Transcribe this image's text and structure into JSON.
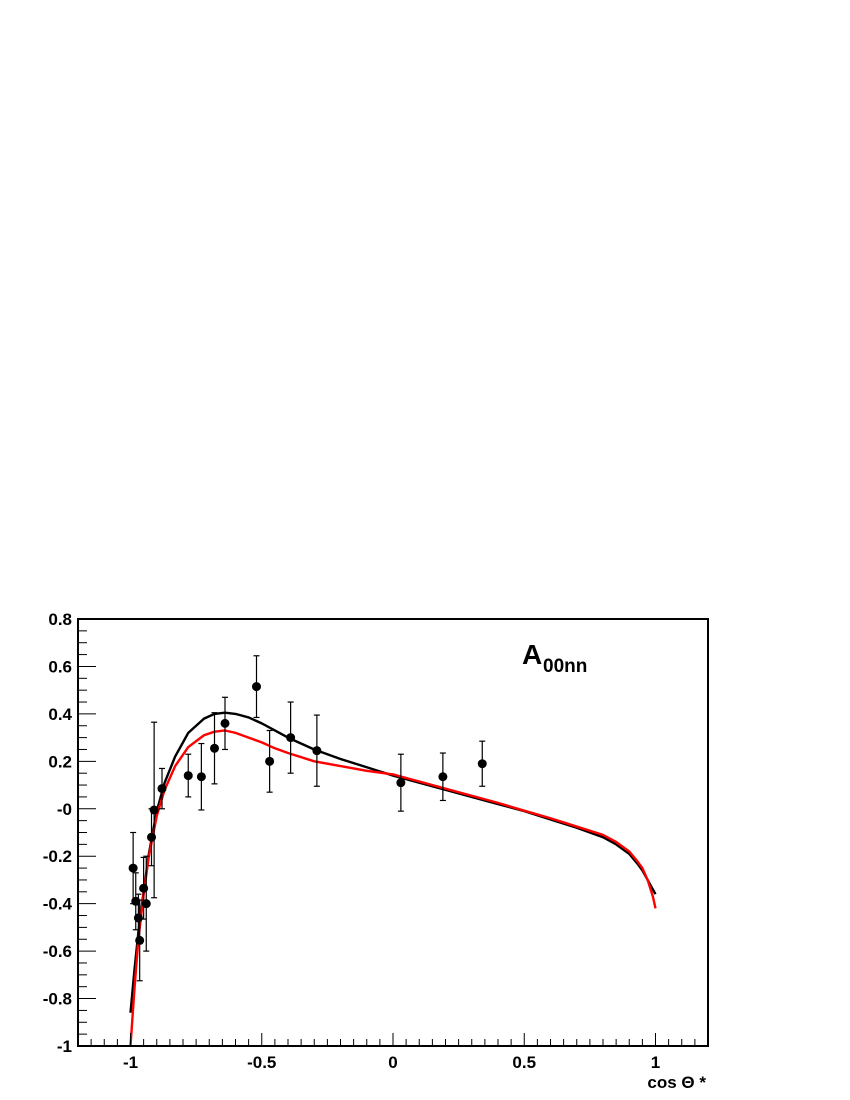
{
  "chart_data": {
    "type": "scatter",
    "title": "",
    "xlabel": "cos Θ *",
    "ylabel": "",
    "xlim": [
      -1.2,
      1.2
    ],
    "ylim": [
      -1,
      0.8
    ],
    "grid": false,
    "annotation": {
      "main": "A",
      "sub": "00nn"
    },
    "x_ticks": [
      -1,
      -0.5,
      0,
      0.5,
      1
    ],
    "x_tick_labels": [
      "-1",
      "-0.5",
      "0",
      "0.5",
      "1"
    ],
    "y_ticks": [
      -1,
      -0.8,
      -0.6,
      -0.4,
      -0.2,
      0,
      0.2,
      0.4,
      0.6,
      0.8
    ],
    "y_tick_labels": [
      "-1",
      "-0.8",
      "-0.6",
      "-0.4",
      "-0.2",
      "-0",
      "0.2",
      "0.4",
      "0.6",
      "0.8"
    ],
    "points": [
      {
        "x": -0.99,
        "y": -0.25,
        "err": 0.15
      },
      {
        "x": -0.98,
        "y": -0.39,
        "err": 0.12
      },
      {
        "x": -0.97,
        "y": -0.46,
        "err": 0.1
      },
      {
        "x": -0.965,
        "y": -0.555,
        "err": 0.17
      },
      {
        "x": -0.95,
        "y": -0.335,
        "err": 0.13
      },
      {
        "x": -0.94,
        "y": -0.4,
        "err": 0.2
      },
      {
        "x": -0.92,
        "y": -0.12,
        "err": 0.12
      },
      {
        "x": -0.91,
        "y": -0.005,
        "err": 0.37
      },
      {
        "x": -0.88,
        "y": 0.085,
        "err": 0.085
      },
      {
        "x": -0.78,
        "y": 0.14,
        "err": 0.09
      },
      {
        "x": -0.73,
        "y": 0.135,
        "err": 0.14
      },
      {
        "x": -0.68,
        "y": 0.255,
        "err": 0.15
      },
      {
        "x": -0.64,
        "y": 0.36,
        "err": 0.11
      },
      {
        "x": -0.52,
        "y": 0.515,
        "err": 0.13
      },
      {
        "x": -0.47,
        "y": 0.2,
        "err": 0.13
      },
      {
        "x": -0.39,
        "y": 0.3,
        "err": 0.15
      },
      {
        "x": -0.29,
        "y": 0.245,
        "err": 0.15
      },
      {
        "x": 0.03,
        "y": 0.11,
        "err": 0.12
      },
      {
        "x": 0.19,
        "y": 0.135,
        "err": 0.1
      },
      {
        "x": 0.34,
        "y": 0.19,
        "err": 0.095
      }
    ],
    "series": [
      {
        "color": "#000000",
        "x": [
          -1.0,
          -0.985,
          -0.97,
          -0.95,
          -0.93,
          -0.9,
          -0.87,
          -0.83,
          -0.78,
          -0.72,
          -0.68,
          -0.64,
          -0.6,
          -0.55,
          -0.5,
          -0.45,
          -0.4,
          -0.3,
          -0.2,
          -0.1,
          0.0,
          0.1,
          0.2,
          0.3,
          0.4,
          0.5,
          0.6,
          0.7,
          0.8,
          0.85,
          0.9,
          0.93,
          0.95,
          0.97,
          0.99,
          1.0
        ],
        "y": [
          -0.86,
          -0.68,
          -0.52,
          -0.35,
          -0.19,
          -0.01,
          0.11,
          0.22,
          0.32,
          0.38,
          0.4,
          0.405,
          0.4,
          0.385,
          0.36,
          0.33,
          0.3,
          0.25,
          0.21,
          0.175,
          0.14,
          0.11,
          0.08,
          0.05,
          0.02,
          -0.01,
          -0.045,
          -0.08,
          -0.12,
          -0.15,
          -0.19,
          -0.23,
          -0.26,
          -0.3,
          -0.34,
          -0.36
        ]
      },
      {
        "color": "#ff0000",
        "x": [
          -1.0,
          -0.985,
          -0.97,
          -0.95,
          -0.93,
          -0.9,
          -0.87,
          -0.83,
          -0.78,
          -0.72,
          -0.68,
          -0.64,
          -0.6,
          -0.55,
          -0.5,
          -0.45,
          -0.4,
          -0.3,
          -0.2,
          -0.1,
          0.0,
          0.1,
          0.2,
          0.3,
          0.4,
          0.5,
          0.6,
          0.7,
          0.8,
          0.85,
          0.9,
          0.93,
          0.95,
          0.97,
          0.99,
          1.0
        ],
        "y": [
          -1.0,
          -0.76,
          -0.55,
          -0.36,
          -0.2,
          -0.03,
          0.08,
          0.18,
          0.26,
          0.31,
          0.325,
          0.33,
          0.32,
          0.3,
          0.28,
          0.255,
          0.235,
          0.2,
          0.18,
          0.16,
          0.145,
          0.115,
          0.085,
          0.055,
          0.025,
          -0.008,
          -0.04,
          -0.075,
          -0.11,
          -0.14,
          -0.18,
          -0.22,
          -0.25,
          -0.3,
          -0.37,
          -0.42
        ]
      }
    ]
  }
}
